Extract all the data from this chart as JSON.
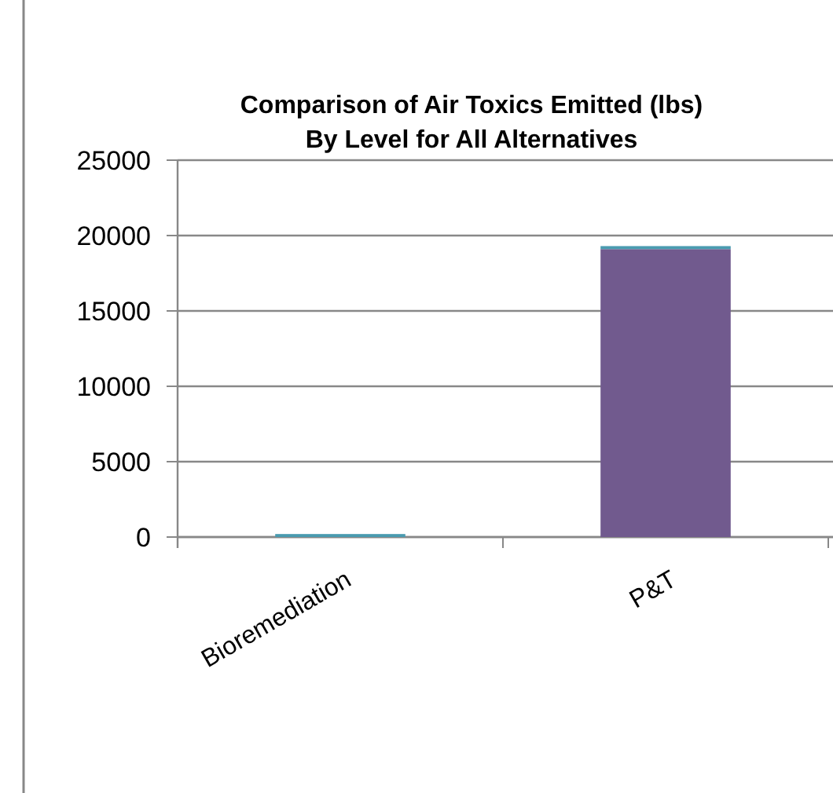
{
  "chart_data": {
    "type": "bar",
    "title": "Comparison of Air Toxics Emitted (lbs) By Level for All Alternatives",
    "categories": [
      "Bioremediation",
      "P&T"
    ],
    "stacked": true,
    "series": [
      {
        "color": "#715a8e",
        "values": [
          0,
          19100
        ]
      },
      {
        "color": "#4a9bb0",
        "values": [
          200,
          200
        ]
      }
    ],
    "ylim": [
      0,
      25000
    ],
    "yticks": [
      0,
      5000,
      10000,
      15000,
      20000,
      25000
    ],
    "grid": "y"
  }
}
